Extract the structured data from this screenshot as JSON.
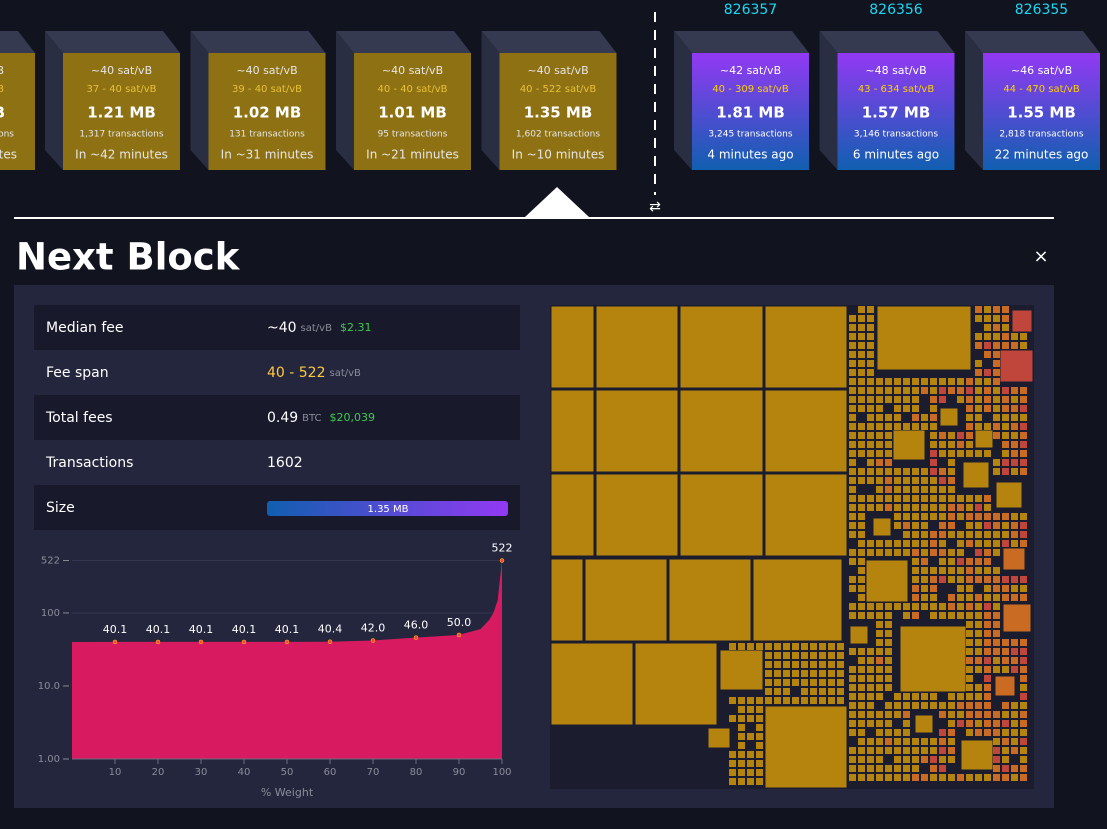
{
  "blocks": {
    "partial": {
      "median_fee": "B",
      "fee_range": "B",
      "size": "B",
      "transactions": "ons",
      "eta": "utes"
    },
    "pending": [
      {
        "median_fee": "~40 sat/vB",
        "fee_range": "37 - 40 sat/vB",
        "size": "1.21 MB",
        "transactions": "1,317 transactions",
        "eta": "In ~42 minutes"
      },
      {
        "median_fee": "~40 sat/vB",
        "fee_range": "39 - 40 sat/vB",
        "size": "1.02 MB",
        "transactions": "131 transactions",
        "eta": "In ~31 minutes"
      },
      {
        "median_fee": "~40 sat/vB",
        "fee_range": "40 - 40 sat/vB",
        "size": "1.01 MB",
        "transactions": "95 transactions",
        "eta": "In ~21 minutes"
      },
      {
        "median_fee": "~40 sat/vB",
        "fee_range": "40 - 522 sat/vB",
        "size": "1.35 MB",
        "transactions": "1,602 transactions",
        "eta": "In ~10 minutes"
      }
    ],
    "mined": [
      {
        "height": "826357",
        "median_fee": "~42 sat/vB",
        "fee_range": "40 - 309 sat/vB",
        "size": "1.81 MB",
        "transactions": "3,245 transactions",
        "age": "4 minutes ago"
      },
      {
        "height": "826356",
        "median_fee": "~48 sat/vB",
        "fee_range": "43 - 634 sat/vB",
        "size": "1.57 MB",
        "transactions": "3,146 transactions",
        "age": "6 minutes ago"
      },
      {
        "height": "826355",
        "median_fee": "~46 sat/vB",
        "fee_range": "44 - 470 sat/vB",
        "size": "1.55 MB",
        "transactions": "2,818 transactions",
        "age": "22 minutes ago"
      }
    ]
  },
  "details": {
    "title": "Next Block",
    "rows": [
      {
        "label": "Median fee",
        "value": "~40",
        "unit": "sat/vB",
        "fiat": "$2.31"
      },
      {
        "label": "Fee span",
        "value": "40 - 522",
        "unit": "sat/vB"
      },
      {
        "label": "Total fees",
        "value": "0.49",
        "unit": "BTC",
        "fiat": "$20,039"
      },
      {
        "label": "Transactions",
        "value": "1602"
      },
      {
        "label": "Size",
        "bar_label": "1.35 MB"
      }
    ]
  },
  "chart_data": {
    "type": "area",
    "x_label": "% Weight",
    "log_y": true,
    "xlim": [
      0,
      100
    ],
    "xticks": [
      10,
      20,
      30,
      40,
      50,
      60,
      70,
      80,
      90,
      100
    ],
    "ylim": [
      1,
      800
    ],
    "yticks": [
      {
        "value": 1,
        "label": "1.00"
      },
      {
        "value": 10,
        "label": "10.0"
      },
      100,
      522
    ],
    "grid": true,
    "x": [
      0,
      10,
      20,
      30,
      40,
      50,
      60,
      70,
      80,
      90,
      95,
      97,
      98,
      99,
      100
    ],
    "series": [
      {
        "color": "#d81b60",
        "values": [
          40,
          40.1,
          40.1,
          40.1,
          40.1,
          40.1,
          40.4,
          42,
          46,
          50,
          60,
          80,
          100,
          150,
          522
        ],
        "value_labels": [
          null,
          "40.1",
          "40.1",
          "40.1",
          "40.1",
          "40.1",
          "40.4",
          "42.0",
          "46.0",
          "50.0",
          null,
          null,
          null,
          null,
          "522"
        ]
      }
    ]
  }
}
